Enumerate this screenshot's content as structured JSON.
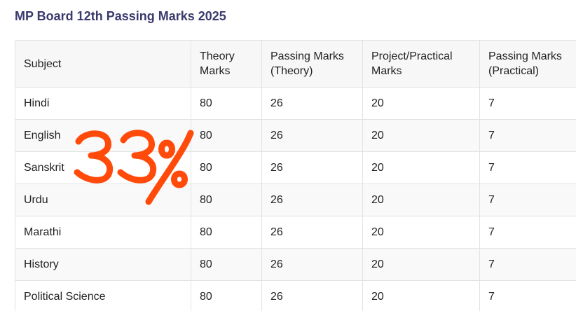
{
  "heading": {
    "title": "MP Board 12th Passing Marks 2025"
  },
  "table": {
    "headers": {
      "subject": "Subject",
      "theory_line1": "Theory",
      "theory_line2": "Marks",
      "passing_theory_line1": "Passing Marks",
      "passing_theory_line2": "(Theory)",
      "project_line1": "Project/Practical",
      "project_line2": "Marks",
      "passing_practical_line1": "Passing Marks",
      "passing_practical_line2": "(Practical)"
    },
    "rows": [
      {
        "subject": "Hindi",
        "theory": "80",
        "passing_theory": "26",
        "practical": "20",
        "passing_practical": "7"
      },
      {
        "subject": "English",
        "theory": "80",
        "passing_theory": "26",
        "practical": "20",
        "passing_practical": "7"
      },
      {
        "subject": "Sanskrit",
        "theory": "80",
        "passing_theory": "26",
        "practical": "20",
        "passing_practical": "7"
      },
      {
        "subject": "Urdu",
        "theory": "80",
        "passing_theory": "26",
        "practical": "20",
        "passing_practical": "7"
      },
      {
        "subject": "Marathi",
        "theory": "80",
        "passing_theory": "26",
        "practical": "20",
        "passing_practical": "7"
      },
      {
        "subject": "History",
        "theory": "80",
        "passing_theory": "26",
        "practical": "20",
        "passing_practical": "7"
      },
      {
        "subject": "Political Science",
        "theory": "80",
        "passing_theory": "26",
        "practical": "20",
        "passing_practical": "7"
      }
    ]
  },
  "annotation": {
    "text": "33%",
    "color": "#ff4a0a"
  },
  "colors": {
    "title": "#3a3a6e",
    "border": "#e2e2e2",
    "header_bg": "#f7f7f7"
  }
}
